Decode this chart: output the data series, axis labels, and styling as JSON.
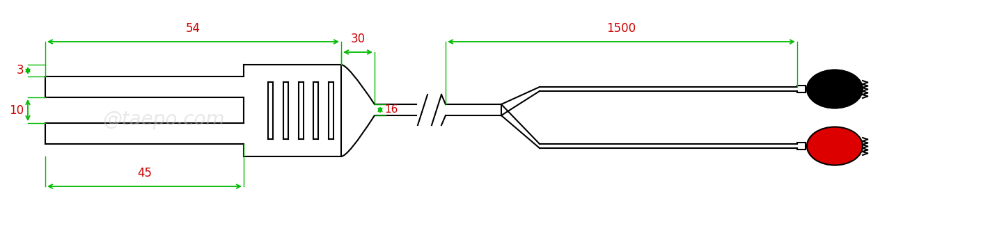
{
  "bg_color": "#ffffff",
  "line_color": "#000000",
  "green": "#00bb00",
  "red_dim": "#cc0000",
  "watermark_color": "#cccccc",
  "watermark_text": "@taepo.com",
  "dim_54_label": "54",
  "dim_45_label": "45",
  "dim_30_label": "30",
  "dim_3_label": "3",
  "dim_10_label": "10",
  "dim_16_label": "16",
  "dim_1500_label": "1500",
  "fig_width": 14.32,
  "fig_height": 3.25,
  "dpi": 100
}
